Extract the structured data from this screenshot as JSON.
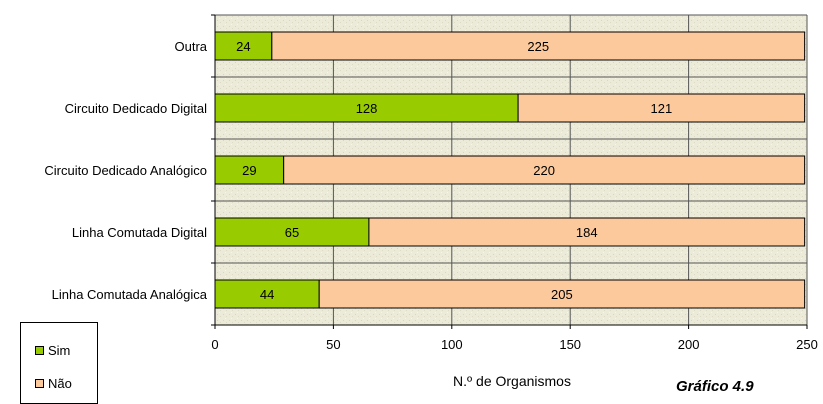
{
  "chart_data": {
    "type": "bar",
    "orientation": "horizontal",
    "stacked": true,
    "categories": [
      "Outra",
      "Circuito Dedicado Digital",
      "Circuito Dedicado Analógico",
      "Linha Comutada Digital",
      "Linha Comutada Analógica"
    ],
    "series": [
      {
        "name": "Sim",
        "color": "#99cc00",
        "values": [
          24,
          128,
          29,
          65,
          44
        ]
      },
      {
        "name": "Não",
        "color": "#fcc99c",
        "values": [
          225,
          121,
          220,
          184,
          205
        ]
      }
    ],
    "xlabel": "N.º de Organismos",
    "ylabel": "",
    "xlim": [
      0,
      250
    ],
    "xticks": [
      0,
      50,
      100,
      150,
      200,
      250
    ],
    "grid": true,
    "legend_position": "bottom-left",
    "plot_background": "#eeeddd"
  },
  "legend": {
    "sim": "Sim",
    "nao": "Não"
  },
  "corner_label": "Gráfico 4.9"
}
